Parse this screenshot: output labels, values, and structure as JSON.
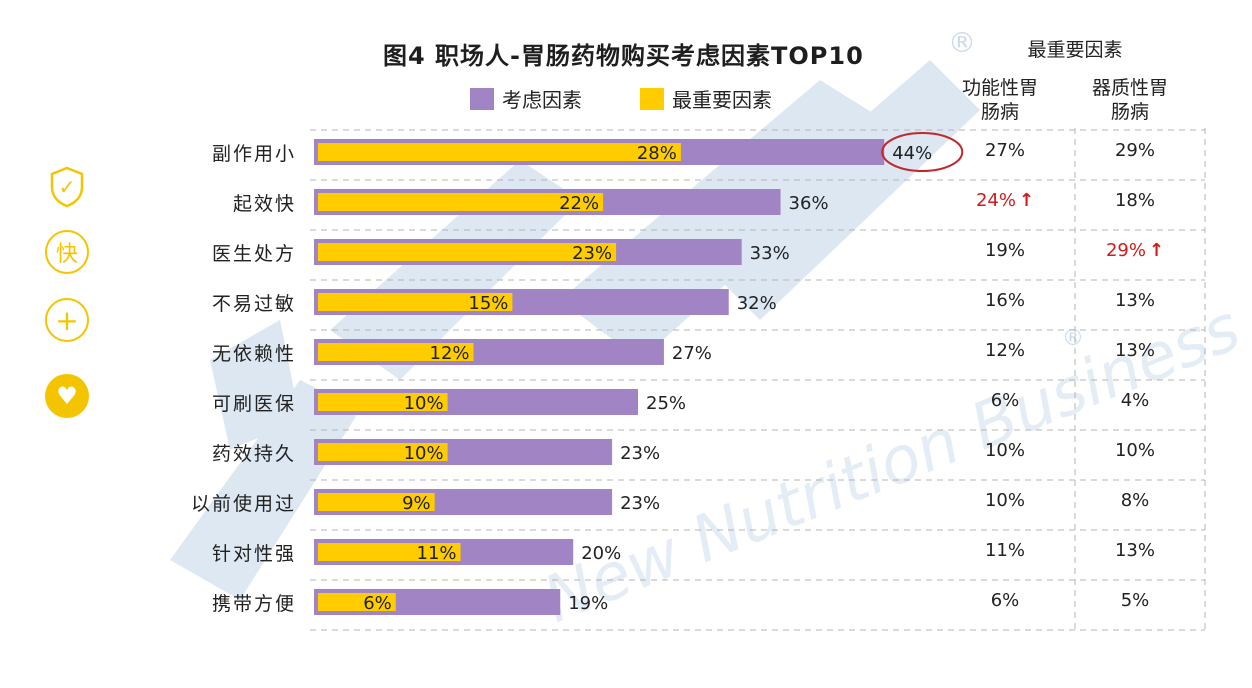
{
  "side_icons": [
    "shield-check-icon",
    "kuai-badge-icon",
    "plus-circle-icon",
    "heart-circle-icon"
  ],
  "side_icon_glyphs": {
    "check": "✓",
    "kuai": "快",
    "plus": "+",
    "heart": "♥"
  },
  "colors": {
    "consider": "#a084c4",
    "most_important": "#ffcc00",
    "highlight_circle": "#c0282d",
    "up_arrow": "#d11a1a",
    "accent_icon": "#f5c400"
  },
  "chart_data": {
    "type": "bar",
    "orientation": "horizontal",
    "title": "图4 职场人-胃肠药物购买考虑因素TOP10",
    "legend": [
      "考虑因素",
      "最重要因素"
    ],
    "legend_placement": "top",
    "categories": [
      "副作用小",
      "起效快",
      "医生处方",
      "不易过敏",
      "无依赖性",
      "可刷医保",
      "药效持久",
      "以前使用过",
      "针对性强",
      "携带方便"
    ],
    "series": [
      {
        "name": "考虑因素",
        "values": [
          44,
          36,
          33,
          32,
          27,
          25,
          23,
          23,
          20,
          19
        ],
        "labels": [
          "44%",
          "36%",
          "33%",
          "32%",
          "27%",
          "25%",
          "23%",
          "23%",
          "20%",
          "19%"
        ]
      },
      {
        "name": "最重要因素",
        "values": [
          28,
          22,
          23,
          15,
          12,
          10,
          10,
          9,
          11,
          6
        ],
        "labels": [
          "28%",
          "22%",
          "23%",
          "15%",
          "12%",
          "10%",
          "10%",
          "9%",
          "11%",
          "6%"
        ]
      }
    ],
    "highlight": {
      "category": "副作用小",
      "label": "44%"
    },
    "table": {
      "group_header": "最重要因素",
      "columns": [
        {
          "header": "功能性胃肠病",
          "values": [
            "27%",
            "24%",
            "19%",
            "16%",
            "12%",
            "6%",
            "10%",
            "10%",
            "11%",
            "6%"
          ],
          "up_marks": [
            false,
            true,
            false,
            false,
            false,
            false,
            false,
            false,
            false,
            false
          ]
        },
        {
          "header": "器质性胃肠病",
          "values": [
            "29%",
            "18%",
            "29%",
            "13%",
            "13%",
            "4%",
            "10%",
            "8%",
            "13%",
            "5%"
          ],
          "up_marks": [
            false,
            false,
            true,
            false,
            false,
            false,
            false,
            false,
            false,
            false
          ]
        }
      ],
      "up_arrow": "↑"
    },
    "grid": "dashed horizontal separators"
  },
  "watermark": {
    "text": "New Nutrition Business",
    "registered": "®"
  }
}
